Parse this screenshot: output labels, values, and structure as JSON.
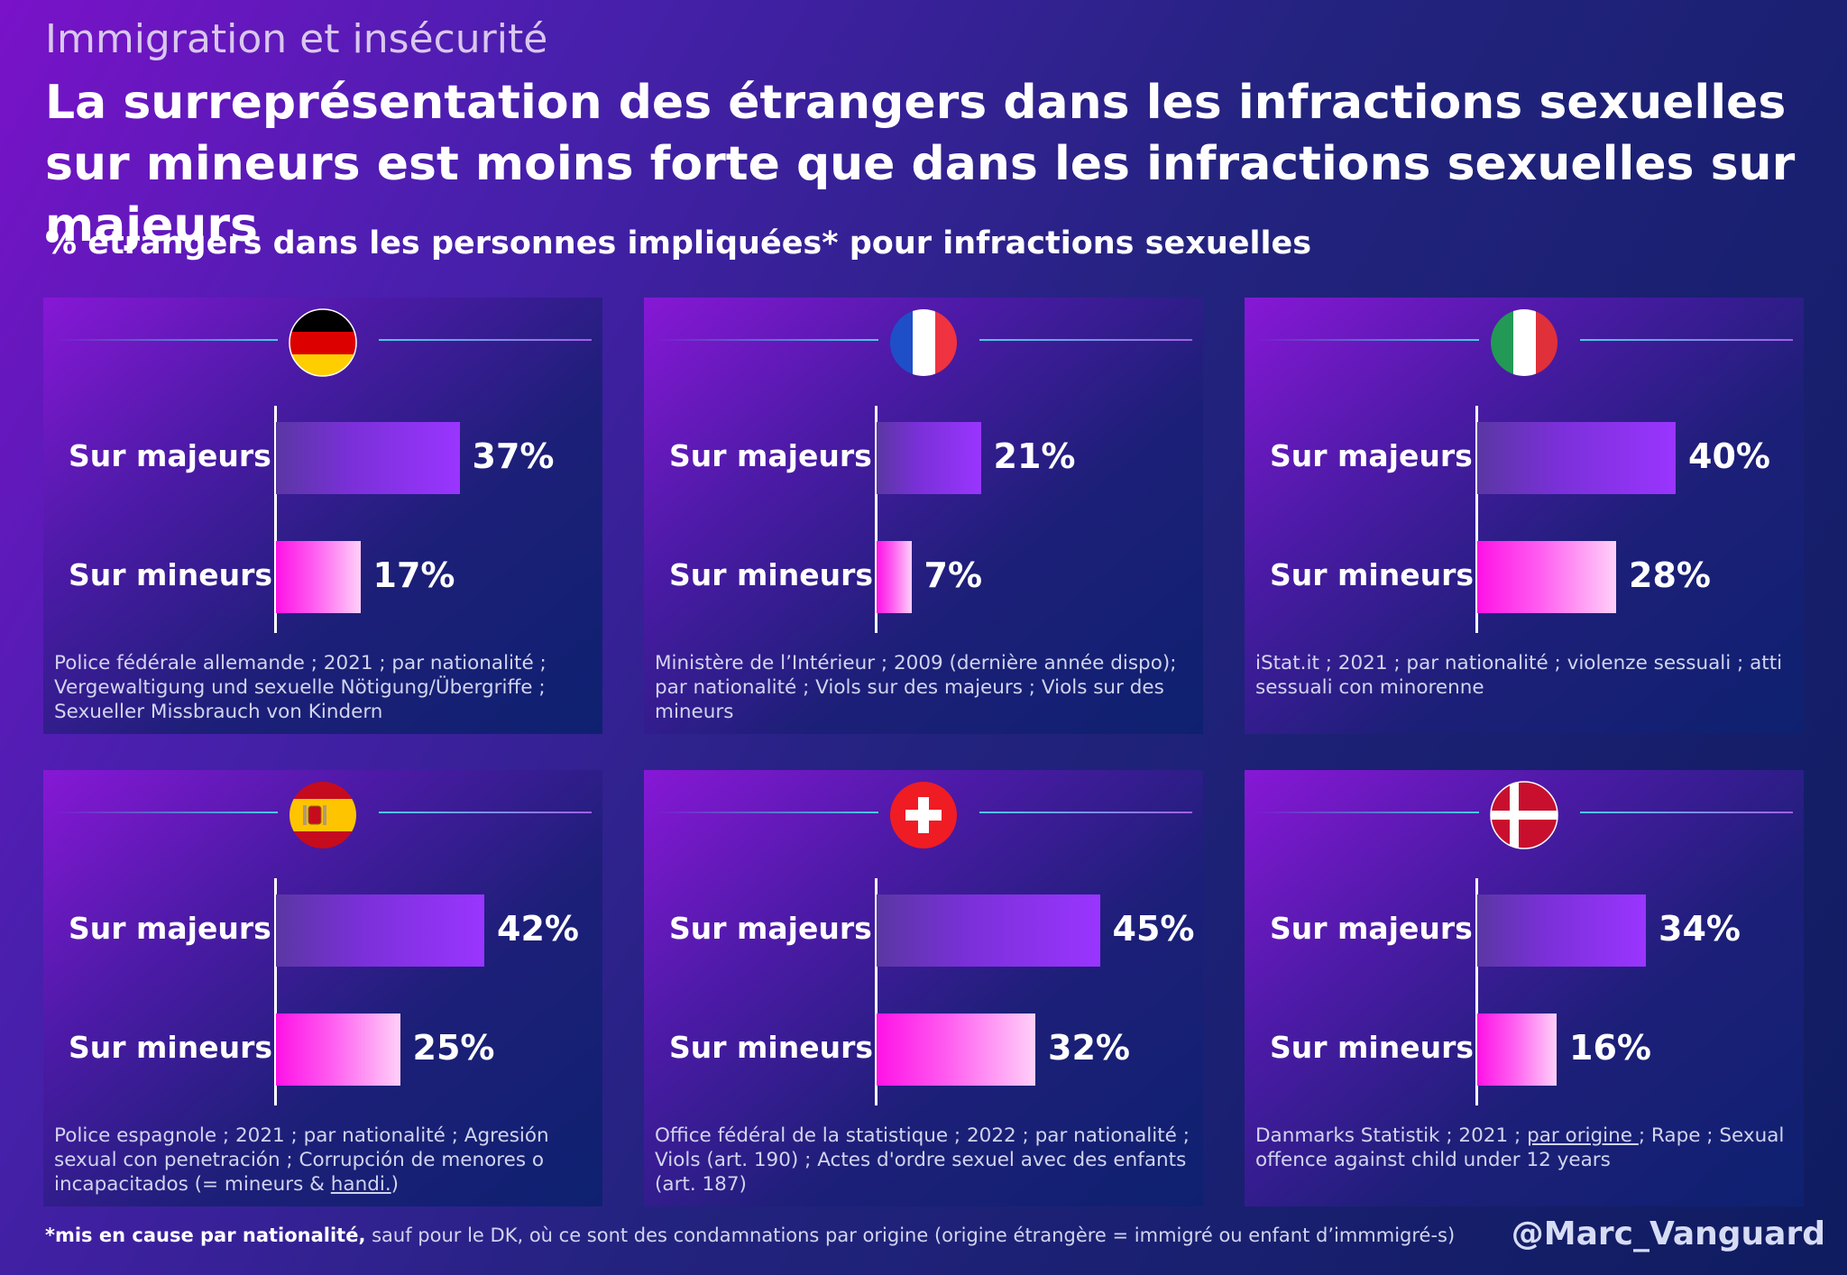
{
  "header": {
    "kicker": "Immigration et insécurité",
    "title": "La surreprésentation des étrangers dans les infractions sexuelles sur mineurs est moins forte que dans les infractions sexuelles sur majeurs",
    "subtitle": "% étrangers dans les personnes impliquées* pour infractions sexuelles"
  },
  "labels": {
    "majeurs": "Sur majeurs",
    "mineurs": "Sur mineurs"
  },
  "panels": [
    {
      "flag": "germany-flag-icon",
      "sources": [
        {
          "text": "Police fédérale allemande ; 2021 ; par nationalité ; Vergewaltigung und sexuelle Nötigung/Übergriffe ; Sexueller Missbrauch von Kindern"
        }
      ]
    },
    {
      "flag": "france-flag-icon",
      "sources": [
        {
          "text": "Ministère de l’Intérieur ; 2009 (dernière année dispo); par nationalité ; Viols sur des majeurs ; Viols sur des mineurs"
        }
      ]
    },
    {
      "flag": "italy-flag-icon",
      "sources": [
        {
          "text": "iStat.it ; 2021 ; par nationalité ; violenze sessuali ;  atti sessuali con minorenne"
        }
      ]
    },
    {
      "flag": "spain-flag-icon",
      "sources": [
        {
          "text": "Police espagnole ; 2021 ; par nationalité ; Agresión sexual con penetración ; Corrupción de menores o incapacitados (= mineurs & "
        },
        {
          "text": "handi.",
          "u": true
        },
        {
          "text": ")"
        }
      ]
    },
    {
      "flag": "switzerland-flag-icon",
      "sources": [
        {
          "text": "Office fédéral de la statistique ; 2022 ; par nationalité ; Viols (art. 190) ; Actes d'ordre sexuel avec des enfants (art. 187)"
        }
      ]
    },
    {
      "flag": "denmark-flag-icon",
      "sources": [
        {
          "text": "Danmarks Statistik ; 2021 ; "
        },
        {
          "text": "par origine ",
          "u": true
        },
        {
          "text": "; Rape ; Sexual offence against child under 12 years"
        }
      ]
    }
  ],
  "chart_data": [
    {
      "type": "bar",
      "categories": [
        "Sur majeurs",
        "Sur mineurs"
      ],
      "values": [
        37,
        17
      ],
      "value_labels": [
        "37%",
        "17%"
      ]
    },
    {
      "type": "bar",
      "categories": [
        "Sur majeurs",
        "Sur mineurs"
      ],
      "values": [
        21,
        7
      ],
      "value_labels": [
        "21%",
        "7%"
      ]
    },
    {
      "type": "bar",
      "categories": [
        "Sur majeurs",
        "Sur mineurs"
      ],
      "values": [
        40,
        28
      ],
      "value_labels": [
        "40%",
        "28%"
      ]
    },
    {
      "type": "bar",
      "categories": [
        "Sur majeurs",
        "Sur mineurs"
      ],
      "values": [
        42,
        25
      ],
      "value_labels": [
        "42%",
        "25%"
      ]
    },
    {
      "type": "bar",
      "categories": [
        "Sur majeurs",
        "Sur mineurs"
      ],
      "values": [
        45,
        32
      ],
      "value_labels": [
        "45%",
        "32%"
      ]
    },
    {
      "type": "bar",
      "categories": [
        "Sur majeurs",
        "Sur mineurs"
      ],
      "values": [
        34,
        16
      ],
      "value_labels": [
        "34%",
        "16%"
      ]
    }
  ],
  "footer": {
    "footnote_bold": "*mis en cause par nationalité,",
    "footnote_rest": " sauf pour le DK, où ce sont des condamnations par origine (origine étrangère = immigré ou enfant d’immmigré-s)",
    "handle": "@Marc_Vanguard"
  },
  "colors": {
    "majeurs_bar": "#9a35ff",
    "mineurs_bar": "#ff12e6",
    "accent_line": "#4cc9e6"
  }
}
